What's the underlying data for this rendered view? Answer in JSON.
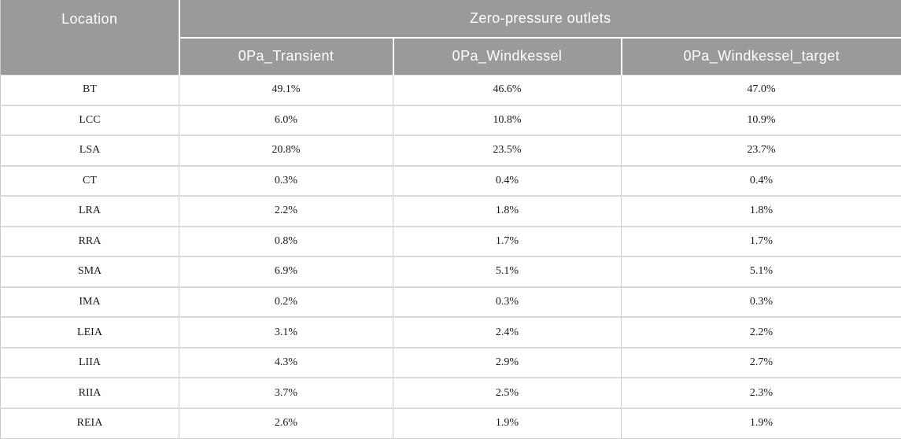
{
  "table": {
    "header": {
      "location_label": "Location",
      "group_label": "Zero-pressure outlets",
      "columns": [
        "0Pa_Transient",
        "0Pa_Windkessel",
        "0Pa_Windkessel_target"
      ]
    },
    "rows": [
      {
        "location": "BT",
        "values": [
          "49.1%",
          "46.6%",
          "47.0%"
        ]
      },
      {
        "location": "LCC",
        "values": [
          "6.0%",
          "10.8%",
          "10.9%"
        ]
      },
      {
        "location": "LSA",
        "values": [
          "20.8%",
          "23.5%",
          "23.7%"
        ]
      },
      {
        "location": "CT",
        "values": [
          "0.3%",
          "0.4%",
          "0.4%"
        ]
      },
      {
        "location": "LRA",
        "values": [
          "2.2%",
          "1.8%",
          "1.8%"
        ]
      },
      {
        "location": "RRA",
        "values": [
          "0.8%",
          "1.7%",
          "1.7%"
        ]
      },
      {
        "location": "SMA",
        "values": [
          "6.9%",
          "5.1%",
          "5.1%"
        ]
      },
      {
        "location": "IMA",
        "values": [
          "0.2%",
          "0.3%",
          "0.3%"
        ]
      },
      {
        "location": "LEIA",
        "values": [
          "3.1%",
          "2.4%",
          "2.2%"
        ]
      },
      {
        "location": "LIIA",
        "values": [
          "4.3%",
          "2.9%",
          "2.7%"
        ]
      },
      {
        "location": "RIIA",
        "values": [
          "3.7%",
          "2.5%",
          "2.3%"
        ]
      },
      {
        "location": "REIA",
        "values": [
          "2.6%",
          "1.9%",
          "1.9%"
        ]
      }
    ]
  },
  "colors": {
    "header_bg": "#9a9a9a",
    "header_text": "#ffffff",
    "body_text": "#1a1a1a",
    "grid_line": "#cbcbcb",
    "header_divider": "#ffffff"
  },
  "chart_data": {
    "type": "table",
    "title": "Zero-pressure outlets",
    "columns": [
      "Location",
      "0Pa_Transient",
      "0Pa_Windkessel",
      "0Pa_Windkessel_target"
    ],
    "rows": [
      [
        "BT",
        49.1,
        46.6,
        47.0
      ],
      [
        "LCC",
        6.0,
        10.8,
        10.9
      ],
      [
        "LSA",
        20.8,
        23.5,
        23.7
      ],
      [
        "CT",
        0.3,
        0.4,
        0.4
      ],
      [
        "LRA",
        2.2,
        1.8,
        1.8
      ],
      [
        "RRA",
        0.8,
        1.7,
        1.7
      ],
      [
        "SMA",
        6.9,
        5.1,
        5.1
      ],
      [
        "IMA",
        0.2,
        0.3,
        0.3
      ],
      [
        "LEIA",
        3.1,
        2.4,
        2.2
      ],
      [
        "LIIA",
        4.3,
        2.9,
        2.7
      ],
      [
        "RIIA",
        3.7,
        2.5,
        2.3
      ],
      [
        "REIA",
        2.6,
        1.9,
        1.9
      ]
    ],
    "unit": "%"
  }
}
